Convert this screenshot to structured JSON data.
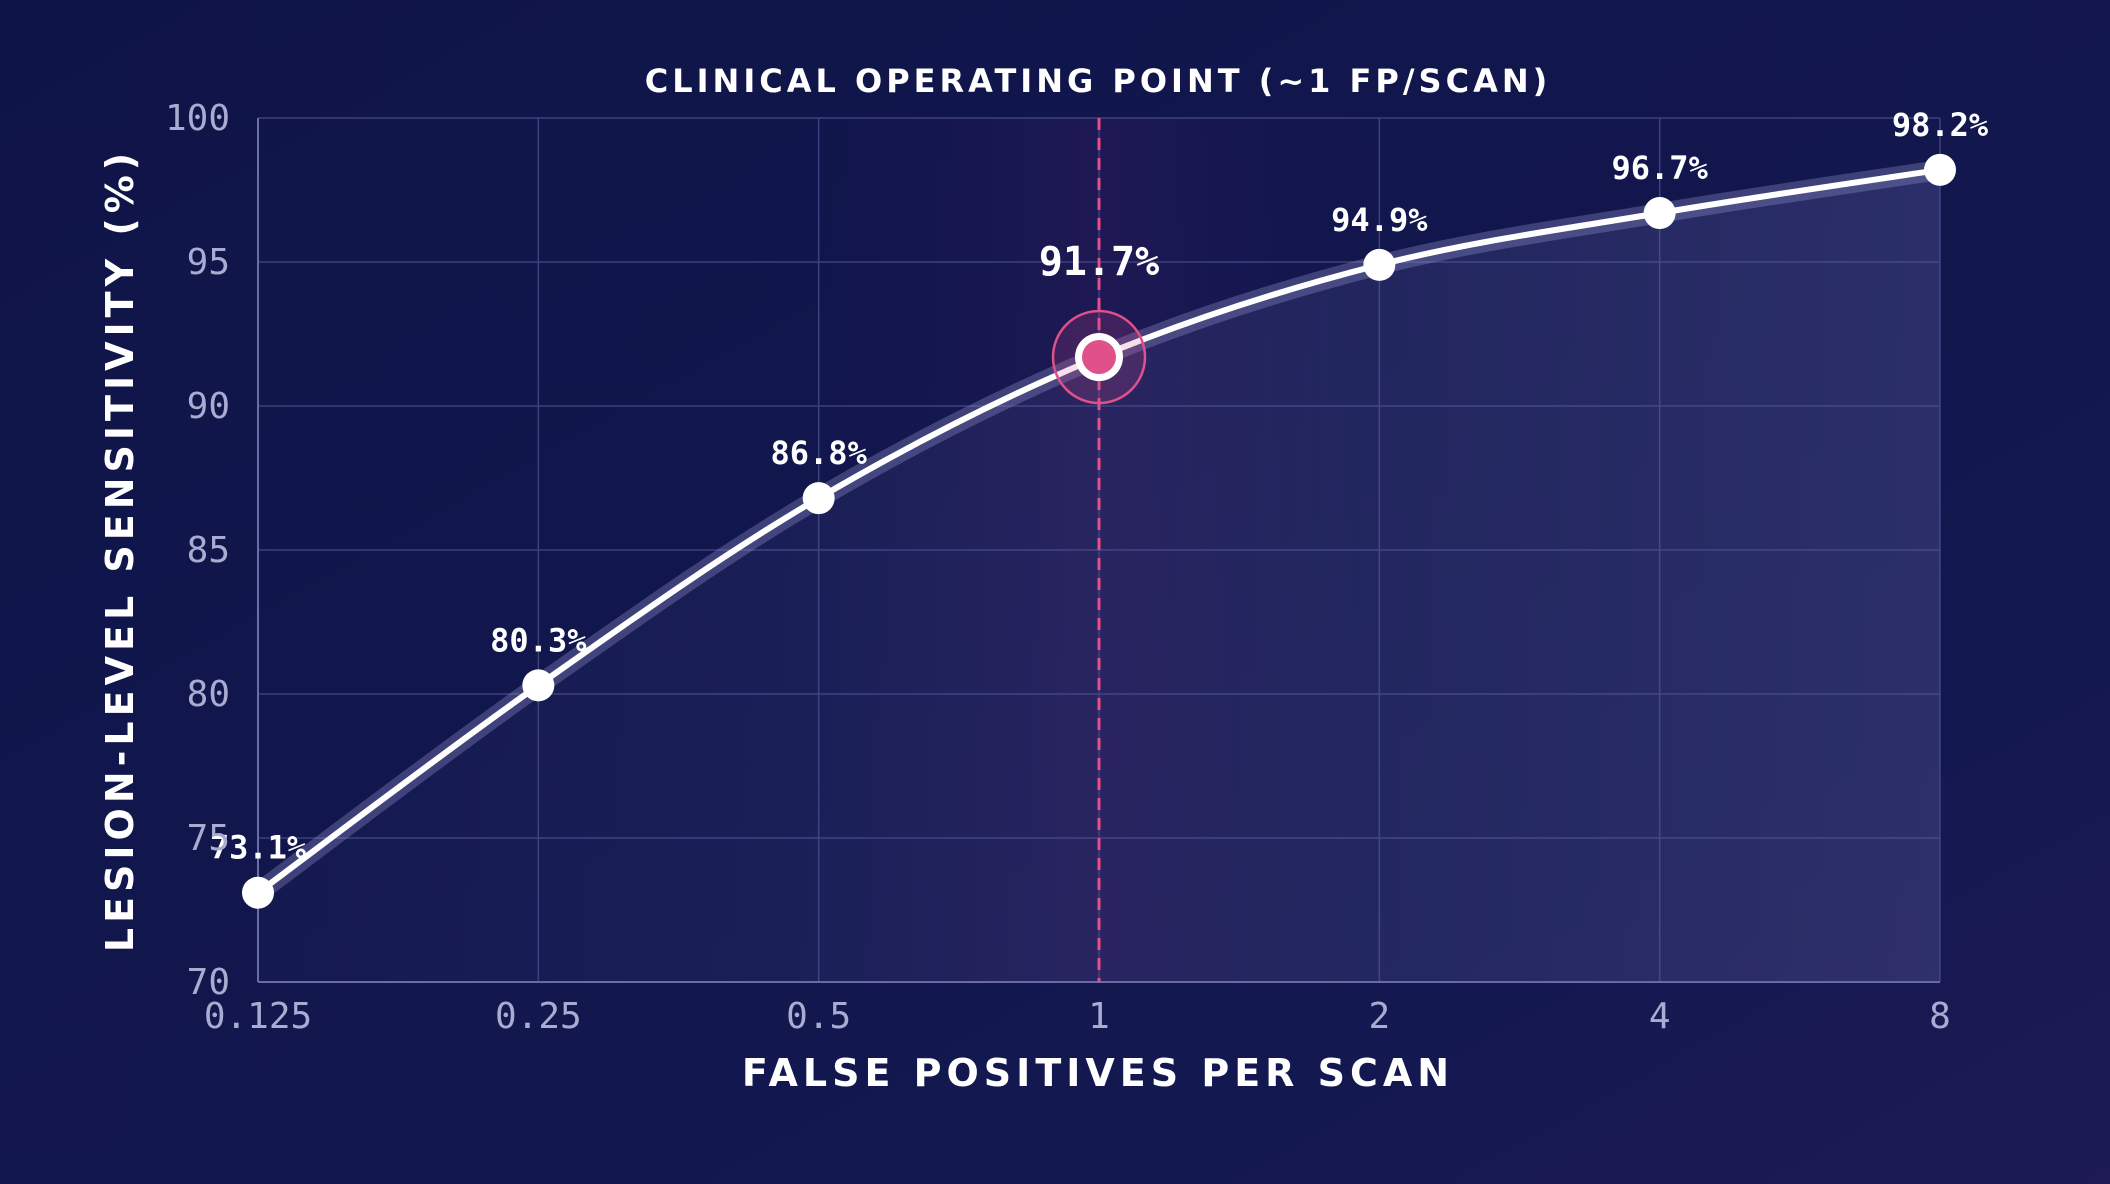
{
  "chart_data": {
    "type": "line",
    "x_scale": "log2",
    "x": [
      0.125,
      0.25,
      0.5,
      1,
      2,
      4,
      8
    ],
    "x_tick_labels": [
      "0.125",
      "0.25",
      "0.5",
      "1",
      "2",
      "4",
      "8"
    ],
    "series": [
      {
        "values": [
          73.1,
          80.3,
          86.8,
          91.7,
          94.9,
          96.7,
          98.2
        ]
      }
    ],
    "data_labels": [
      "73.1%",
      "80.3%",
      "86.8%",
      "91.7%",
      "94.9%",
      "96.7%",
      "98.2%"
    ],
    "xlabel": "FALSE POSITIVES PER SCAN",
    "ylabel": "LESION-LEVEL SENSITIVITY (%)",
    "ylim": [
      70,
      100
    ],
    "y_ticks": [
      70,
      75,
      80,
      85,
      90,
      95,
      100
    ],
    "grid": true,
    "annotation": {
      "label": "CLINICAL OPERATING POINT (~1 FP/SCAN)",
      "x": 1,
      "y": 91.7
    },
    "colors": {
      "background": "#10154a",
      "line": "#ffffff",
      "highlight": "#e0508a"
    }
  }
}
